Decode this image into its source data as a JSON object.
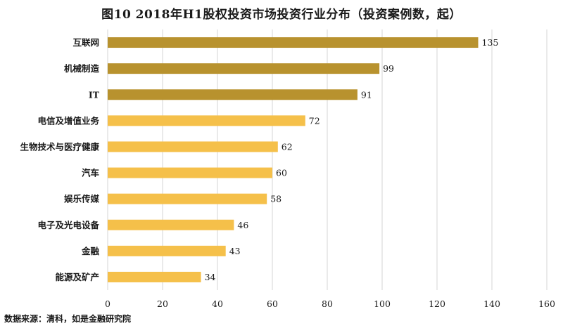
{
  "chart_data": {
    "type": "bar",
    "orientation": "horizontal",
    "title": "图10  2018年H1股权投资市场投资行业分布（投资案例数，起）",
    "categories": [
      "互联网",
      "机械制造",
      "IT",
      "电信及增值业务",
      "生物技术与医疗健康",
      "汽车",
      "娱乐传媒",
      "电子及光电设备",
      "金融",
      "能源及矿产"
    ],
    "values": [
      135,
      99,
      91,
      72,
      62,
      60,
      58,
      46,
      43,
      34
    ],
    "colors": [
      "#b8922e",
      "#b8922e",
      "#b8922e",
      "#f5c04a",
      "#f5c04a",
      "#f5c04a",
      "#f5c04a",
      "#f5c04a",
      "#f5c04a",
      "#f5c04a"
    ],
    "xlim": [
      0,
      160
    ],
    "xticks": [
      0,
      20,
      40,
      60,
      80,
      100,
      120,
      140,
      160
    ],
    "grid": true,
    "xlabel": "",
    "ylabel": ""
  },
  "source": "数据来源：清科，如是金融研究院"
}
